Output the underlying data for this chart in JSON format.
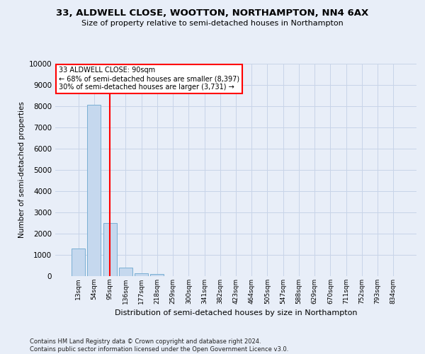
{
  "title": "33, ALDWELL CLOSE, WOOTTON, NORTHAMPTON, NN4 6AX",
  "subtitle": "Size of property relative to semi-detached houses in Northampton",
  "xlabel": "Distribution of semi-detached houses by size in Northampton",
  "ylabel": "Number of semi-detached properties",
  "footer_line1": "Contains HM Land Registry data © Crown copyright and database right 2024.",
  "footer_line2": "Contains public sector information licensed under the Open Government Licence v3.0.",
  "categories": [
    "13sqm",
    "54sqm",
    "95sqm",
    "136sqm",
    "177sqm",
    "218sqm",
    "259sqm",
    "300sqm",
    "341sqm",
    "382sqm",
    "423sqm",
    "464sqm",
    "505sqm",
    "547sqm",
    "588sqm",
    "629sqm",
    "670sqm",
    "711sqm",
    "752sqm",
    "793sqm",
    "834sqm"
  ],
  "values": [
    1300,
    8050,
    2500,
    400,
    150,
    100,
    0,
    0,
    0,
    0,
    0,
    0,
    0,
    0,
    0,
    0,
    0,
    0,
    0,
    0,
    0
  ],
  "bar_color": "#c5d8ee",
  "bar_edge_color": "#7aafd4",
  "subject_bar_index": 2,
  "subject_line_color": "red",
  "ylim": [
    0,
    10000
  ],
  "yticks": [
    0,
    1000,
    2000,
    3000,
    4000,
    5000,
    6000,
    7000,
    8000,
    9000,
    10000
  ],
  "annotation_text_line1": "33 ALDWELL CLOSE: 90sqm",
  "annotation_text_line2": "← 68% of semi-detached houses are smaller (8,397)",
  "annotation_text_line3": "30% of semi-detached houses are larger (3,731) →",
  "annotation_box_color": "red",
  "grid_color": "#c8d4e8",
  "bg_color": "#e8eef8",
  "figsize": [
    6.0,
    5.0
  ],
  "dpi": 100
}
